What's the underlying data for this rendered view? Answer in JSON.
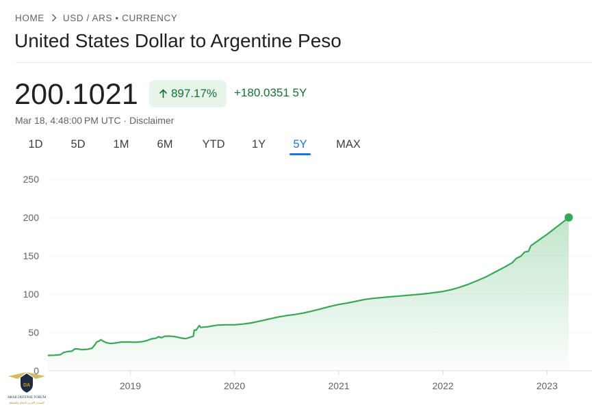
{
  "breadcrumb": {
    "home": "HOME",
    "pair": "USD / ARS • CURRENCY",
    "separator_icon": "chevron-right-icon"
  },
  "page_title": "United States Dollar to Argentine Peso",
  "quote": {
    "price": "200.1021",
    "percent_change": "897.17%",
    "percent_change_icon": "arrow-up-icon",
    "absolute_change": "+180.0351 5Y",
    "timestamp": "Mar 18, 4:48:00 PM UTC · ",
    "disclaimer": "Disclaimer"
  },
  "colors": {
    "positive": "#137333",
    "positive_bg": "#e6f4ea",
    "accent": "#1a73e8",
    "line": "#34a853"
  },
  "range_tabs": [
    {
      "label": "1D"
    },
    {
      "label": "5D"
    },
    {
      "label": "1M"
    },
    {
      "label": "6M"
    },
    {
      "label": "YTD"
    },
    {
      "label": "1Y"
    },
    {
      "label": "5Y",
      "active": true
    },
    {
      "label": "MAX"
    }
  ],
  "watermark": {
    "text1": "ARAB DEFENSE FORUM",
    "text2": "المنتدى العربي للدفاع والتسليح"
  },
  "chart_data": {
    "type": "area",
    "x_ticks": [
      "2019",
      "2020",
      "2021",
      "2022",
      "2023"
    ],
    "y_ticks": [
      0,
      50,
      100,
      150,
      200,
      250
    ],
    "ylim": [
      0,
      250
    ],
    "xlim": [
      "2018-03-18",
      "2023-03-18"
    ],
    "grid": true,
    "series": [
      {
        "values": [
          [
            "2018-03-18",
            20.1
          ],
          [
            "2018-04-10",
            20.3
          ],
          [
            "2018-05-01",
            21.0
          ],
          [
            "2018-05-10",
            23.5
          ],
          [
            "2018-05-25",
            25.0
          ],
          [
            "2018-06-10",
            25.5
          ],
          [
            "2018-06-20",
            28.5
          ],
          [
            "2018-07-01",
            28.5
          ],
          [
            "2018-07-15",
            27.5
          ],
          [
            "2018-08-05",
            28.0
          ],
          [
            "2018-08-20",
            29.5
          ],
          [
            "2018-08-28",
            33.0
          ],
          [
            "2018-09-05",
            37.5
          ],
          [
            "2018-09-12",
            38.5
          ],
          [
            "2018-09-20",
            40.5
          ],
          [
            "2018-09-28",
            38.5
          ],
          [
            "2018-10-10",
            36.5
          ],
          [
            "2018-10-25",
            35.5
          ],
          [
            "2018-11-15",
            36.5
          ],
          [
            "2018-12-01",
            37.5
          ],
          [
            "2018-12-15",
            37.5
          ],
          [
            "2019-01-01",
            37.5
          ],
          [
            "2019-01-15",
            37.2
          ],
          [
            "2019-02-01",
            37.5
          ],
          [
            "2019-02-15",
            38.2
          ],
          [
            "2019-03-01",
            39.5
          ],
          [
            "2019-03-15",
            41.5
          ],
          [
            "2019-04-01",
            42.5
          ],
          [
            "2019-04-10",
            44.5
          ],
          [
            "2019-04-20",
            43.0
          ],
          [
            "2019-05-01",
            45.0
          ],
          [
            "2019-05-15",
            45.2
          ],
          [
            "2019-06-01",
            44.8
          ],
          [
            "2019-06-15",
            43.8
          ],
          [
            "2019-07-01",
            42.5
          ],
          [
            "2019-07-15",
            42.0
          ],
          [
            "2019-08-01",
            44.0
          ],
          [
            "2019-08-10",
            45.0
          ],
          [
            "2019-08-13",
            53.0
          ],
          [
            "2019-08-20",
            53.0
          ],
          [
            "2019-08-25",
            56.0
          ],
          [
            "2019-08-31",
            59.0
          ],
          [
            "2019-09-05",
            56.5
          ],
          [
            "2019-09-15",
            57.0
          ],
          [
            "2019-10-01",
            57.5
          ],
          [
            "2019-10-15",
            58.5
          ],
          [
            "2019-11-01",
            59.5
          ],
          [
            "2019-12-01",
            60.0
          ],
          [
            "2020-01-01",
            60.0
          ],
          [
            "2020-02-01",
            61.0
          ],
          [
            "2020-03-01",
            62.5
          ],
          [
            "2020-04-01",
            65.0
          ],
          [
            "2020-05-01",
            67.5
          ],
          [
            "2020-06-01",
            70.0
          ],
          [
            "2020-07-01",
            72.0
          ],
          [
            "2020-08-01",
            73.5
          ],
          [
            "2020-09-01",
            75.5
          ],
          [
            "2020-10-01",
            78.0
          ],
          [
            "2020-11-01",
            81.0
          ],
          [
            "2020-12-01",
            84.0
          ],
          [
            "2021-01-01",
            86.5
          ],
          [
            "2021-02-01",
            88.5
          ],
          [
            "2021-03-01",
            90.5
          ],
          [
            "2021-04-01",
            93.0
          ],
          [
            "2021-05-01",
            94.5
          ],
          [
            "2021-06-01",
            95.5
          ],
          [
            "2021-07-01",
            96.5
          ],
          [
            "2021-08-01",
            97.5
          ],
          [
            "2021-09-01",
            98.5
          ],
          [
            "2021-10-01",
            99.5
          ],
          [
            "2021-11-01",
            100.5
          ],
          [
            "2021-12-01",
            102.0
          ],
          [
            "2022-01-01",
            103.5
          ],
          [
            "2022-02-01",
            106.0
          ],
          [
            "2022-03-01",
            109.0
          ],
          [
            "2022-04-01",
            113.0
          ],
          [
            "2022-05-01",
            117.5
          ],
          [
            "2022-06-01",
            122.5
          ],
          [
            "2022-07-01",
            128.5
          ],
          [
            "2022-08-01",
            134.5
          ],
          [
            "2022-09-01",
            141.0
          ],
          [
            "2022-09-15",
            146.5
          ],
          [
            "2022-10-01",
            149.5
          ],
          [
            "2022-10-15",
            155.0
          ],
          [
            "2022-10-28",
            156.0
          ],
          [
            "2022-11-05",
            163.0
          ],
          [
            "2022-12-01",
            170.0
          ],
          [
            "2023-01-01",
            178.0
          ],
          [
            "2023-02-01",
            187.0
          ],
          [
            "2023-03-01",
            195.0
          ],
          [
            "2023-03-18",
            200.1
          ]
        ]
      }
    ]
  }
}
